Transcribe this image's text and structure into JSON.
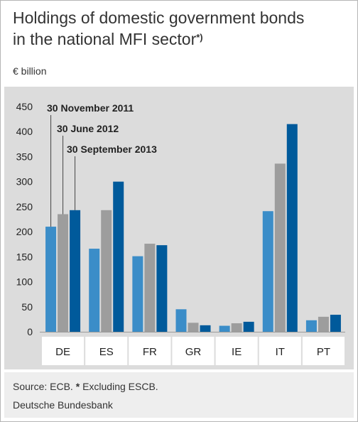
{
  "title_line1": "Holdings of domestic government bonds",
  "title_line2": "in the national MFI sector",
  "title_note_mark": "*)",
  "unit_label": "€ billion",
  "footer": {
    "source_prefix": "Source: ECB.",
    "note_mark": "*",
    "note_text": "Excluding ESCB.",
    "organisation": "Deutsche Bundesbank"
  },
  "colors": {
    "background": "#dcdcdc",
    "footer_background": "#eeeeee",
    "series": [
      "#3b8dc8",
      "#9d9d9d",
      "#005a9b"
    ]
  },
  "chart_data": {
    "type": "bar",
    "categories": [
      "DE",
      "ES",
      "FR",
      "GR",
      "IE",
      "IT",
      "PT"
    ],
    "series": [
      {
        "name": "30 November 2011",
        "values": [
          210,
          166,
          151,
          45,
          12,
          241,
          23
        ]
      },
      {
        "name": "30 June 2012",
        "values": [
          235,
          243,
          176,
          18,
          17,
          336,
          30
        ]
      },
      {
        "name": "30 September 2013",
        "values": [
          243,
          300,
          173,
          13,
          20,
          415,
          34
        ]
      }
    ],
    "yticks": [
      0,
      50,
      100,
      150,
      200,
      250,
      300,
      350,
      400,
      450
    ],
    "ylim": [
      0,
      450
    ],
    "ylabel": "€ billion",
    "legend": "annotations above DE bars",
    "grid": false
  }
}
